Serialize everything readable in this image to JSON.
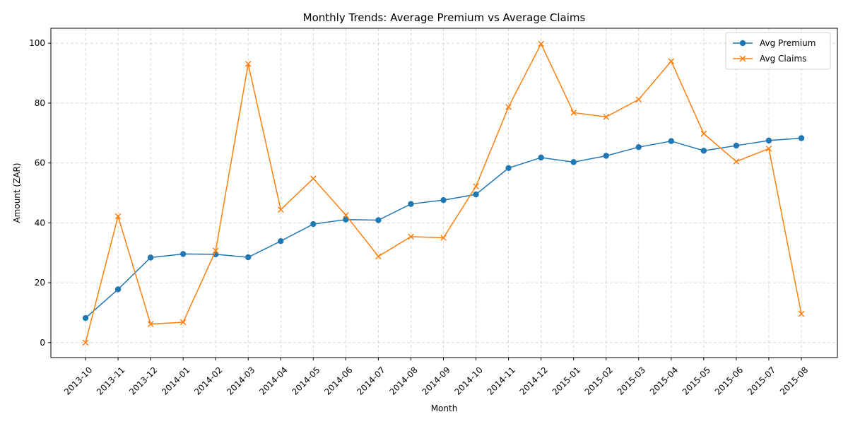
{
  "chart_data": {
    "type": "line",
    "title": "Monthly Trends: Average Premium vs Average Claims",
    "xlabel": "Month",
    "ylabel": "Amount (ZAR)",
    "categories": [
      "2013-10",
      "2013-11",
      "2013-12",
      "2014-01",
      "2014-02",
      "2014-03",
      "2014-04",
      "2014-05",
      "2014-06",
      "2014-07",
      "2014-08",
      "2014-09",
      "2014-10",
      "2014-11",
      "2014-12",
      "2015-01",
      "2015-02",
      "2015-03",
      "2015-04",
      "2015-05",
      "2015-06",
      "2015-07",
      "2015-08"
    ],
    "ylim": [
      -5,
      105
    ],
    "yticks": [
      0,
      20,
      40,
      60,
      80,
      100
    ],
    "grid": true,
    "legend_position": "top-right",
    "series": [
      {
        "name": "Avg Premium",
        "color": "#1f77b4",
        "marker": "circle",
        "values": [
          8.2,
          17.8,
          28.4,
          29.6,
          29.5,
          28.5,
          33.9,
          39.6,
          41.1,
          40.9,
          46.3,
          47.6,
          49.5,
          58.3,
          61.8,
          60.3,
          62.4,
          65.3,
          67.3,
          64.1,
          65.8,
          67.5,
          68.3
        ]
      },
      {
        "name": "Avg Claims",
        "color": "#ff7f0e",
        "marker": "x",
        "values": [
          0.0,
          42.2,
          6.2,
          6.8,
          30.7,
          93.1,
          44.4,
          54.8,
          42.6,
          28.8,
          35.4,
          35.0,
          52.2,
          78.7,
          99.8,
          76.8,
          75.4,
          81.2,
          94.0,
          69.8,
          60.5,
          64.8,
          9.6
        ]
      }
    ]
  }
}
